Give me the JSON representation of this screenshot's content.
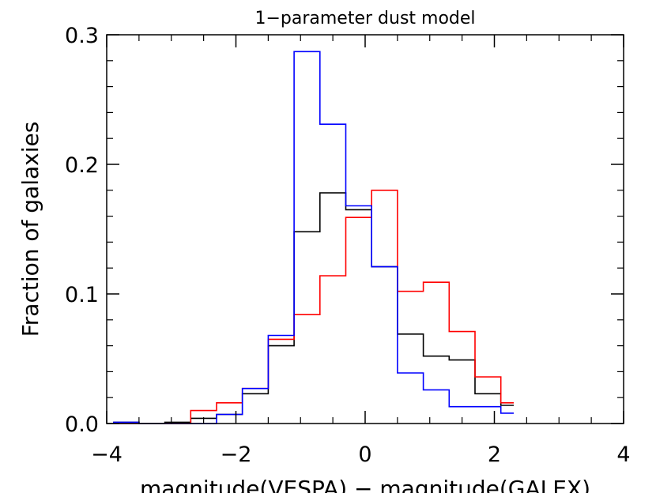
{
  "chart_data": {
    "type": "histogram",
    "title": "1−parameter dust model",
    "xlabel": "magnitude(VESPA) − magnitude(GALEX)",
    "ylabel": "Fraction of galaxies",
    "xlim": [
      -4,
      4
    ],
    "ylim": [
      0,
      0.3
    ],
    "x_ticks": [
      -4,
      -2,
      0,
      2,
      4
    ],
    "x_tick_labels": [
      "−4",
      "−2",
      "0",
      "2",
      "4"
    ],
    "y_ticks": [
      0.0,
      0.1,
      0.2,
      0.3
    ],
    "y_tick_labels": [
      "0.0",
      "0.1",
      "0.2",
      "0.3"
    ],
    "grid": false,
    "legend": "none",
    "series": [
      {
        "color": "#000000",
        "bin_edges": [
          -3.9,
          -3.5,
          -3.1,
          -2.7,
          -2.3,
          -1.9,
          -1.5,
          -1.1,
          -0.7,
          -0.3,
          0.1,
          0.5,
          0.9,
          1.3,
          1.7,
          2.1,
          2.3
        ],
        "values": [
          0.001,
          0.0,
          0.001,
          0.004,
          0.007,
          0.023,
          0.06,
          0.148,
          0.178,
          0.165,
          0.121,
          0.069,
          0.052,
          0.049,
          0.023,
          0.014
        ]
      },
      {
        "color": "#ff0000",
        "bin_edges": [
          -3.9,
          -3.5,
          -3.1,
          -2.7,
          -2.3,
          -1.9,
          -1.5,
          -1.1,
          -0.7,
          -0.3,
          0.1,
          0.5,
          0.9,
          1.3,
          1.7,
          2.1,
          2.3
        ],
        "values": [
          0.0,
          0.0,
          0.0,
          0.01,
          0.016,
          0.027,
          0.065,
          0.084,
          0.114,
          0.159,
          0.18,
          0.102,
          0.109,
          0.071,
          0.036,
          0.016
        ]
      },
      {
        "color": "#0000ff",
        "bin_edges": [
          -3.9,
          -3.5,
          -3.1,
          -2.7,
          -2.3,
          -1.9,
          -1.5,
          -1.1,
          -0.7,
          -0.3,
          0.1,
          0.5,
          0.9,
          1.3,
          1.7,
          2.1,
          2.3
        ],
        "values": [
          0.001,
          0.0,
          0.0,
          0.0,
          0.007,
          0.027,
          0.068,
          0.287,
          0.231,
          0.168,
          0.121,
          0.039,
          0.026,
          0.013,
          0.013,
          0.008
        ]
      }
    ]
  }
}
